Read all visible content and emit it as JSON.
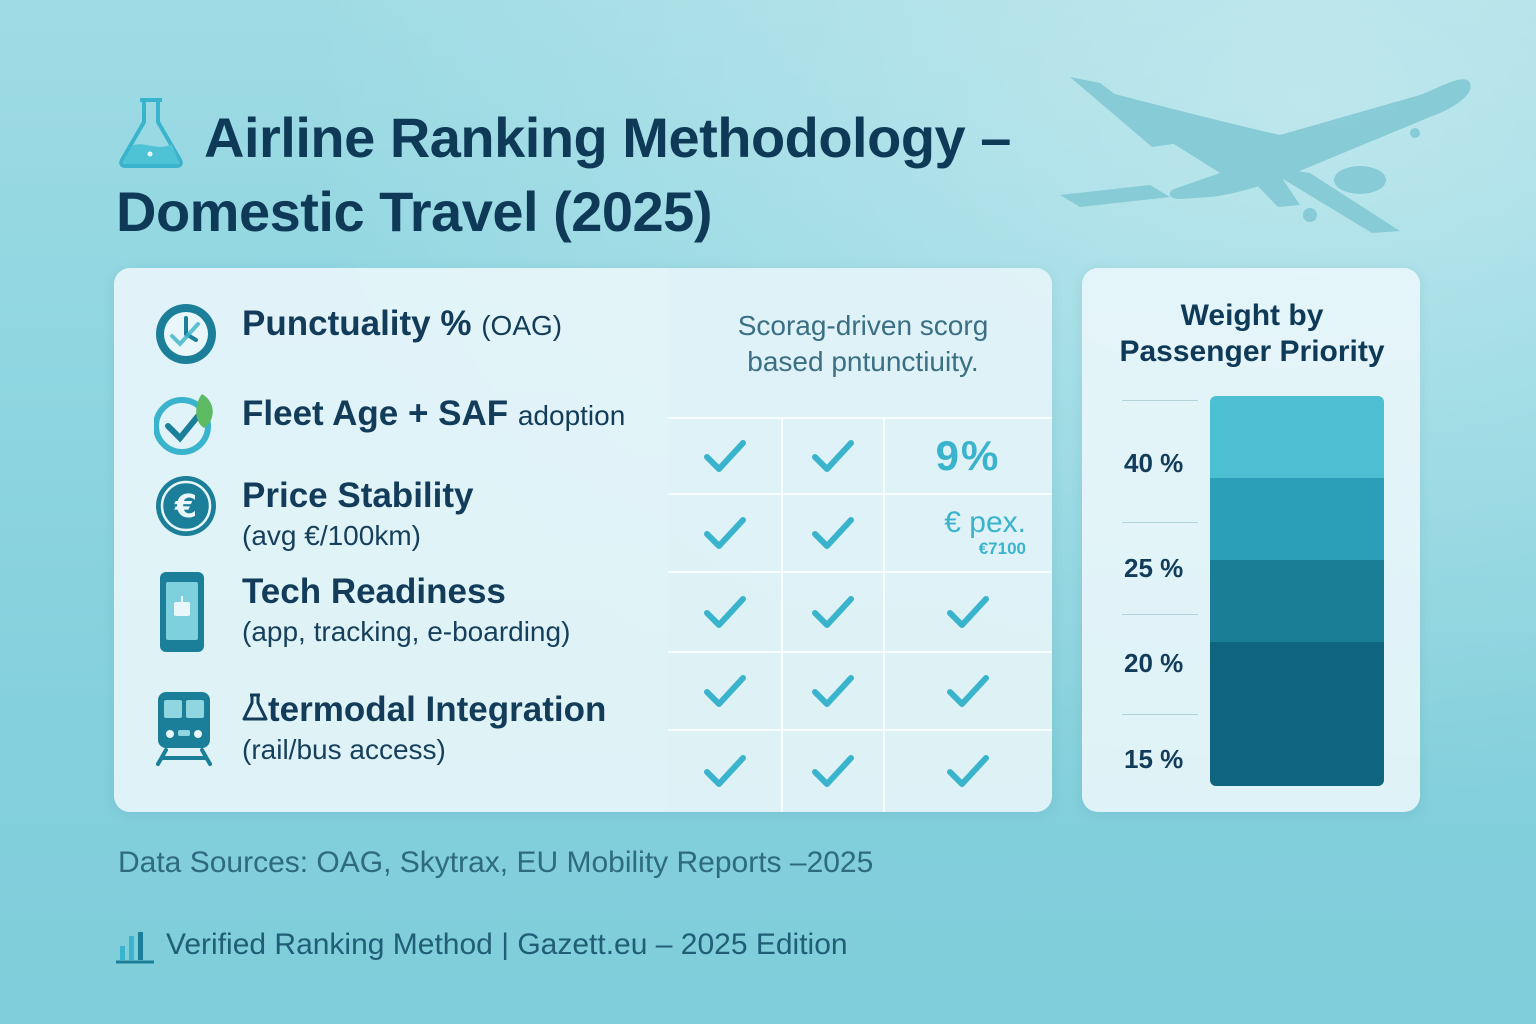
{
  "header": {
    "title_line1": "Airline Ranking Methodology –",
    "title_line2": "Domestic Travel (2025)",
    "title_icon": "flask-icon",
    "background_icon": "airplane-icon"
  },
  "criteria": [
    {
      "icon": "clock-icon",
      "title": "Punctuality %",
      "note": "(OAG)",
      "subtitle": ""
    },
    {
      "icon": "leaf-check-icon",
      "title": "Fleet Age + SAF",
      "note": "adoption",
      "subtitle": ""
    },
    {
      "icon": "euro-icon",
      "title": "Price Stability",
      "note": "",
      "subtitle": "(avg €/100km)"
    },
    {
      "icon": "smartphone-icon",
      "title": "Tech Readiness",
      "note": "",
      "subtitle": "(app, tracking, e-boarding)"
    },
    {
      "icon": "train-icon",
      "title": "termodal Integration",
      "note": "",
      "subtitle": "(rail/bus access)"
    }
  ],
  "grid": {
    "header_line1": "Scorag-driven scorg",
    "header_line2": "based pntunctiuity.",
    "rows": [
      {
        "c1": "check",
        "c2": "check",
        "c3": "9%"
      },
      {
        "c1": "check",
        "c2": "check",
        "c3": "pex",
        "c3_big": "€ pex.",
        "c3_small": "€7100"
      },
      {
        "c1": "check",
        "c2": "check",
        "c3": "check"
      },
      {
        "c1": "check",
        "c2": "check",
        "c3": "check"
      },
      {
        "c1": "check",
        "c2": "check",
        "c3": "check"
      }
    ]
  },
  "weights": {
    "title_line1": "Weight by",
    "title_line2": "Passenger Priority",
    "labels": [
      "40 %",
      "25 %",
      "20 %",
      "15 %"
    ],
    "segment_colors": [
      "#4cbfd3",
      "#2c9fb8",
      "#197e96",
      "#0f6580"
    ]
  },
  "sources": "Data Sources:  OAG, Skytrax, EU Mobility Reports –2025",
  "footer": {
    "icon": "bar-chart-icon",
    "text": "Verified Ranking Method  |  Gazett.eu – 2025 Edition"
  },
  "colors": {
    "accent": "#3ab3cc",
    "text_dark": "#0f3a57",
    "icon_teal": "#1c7f99"
  }
}
